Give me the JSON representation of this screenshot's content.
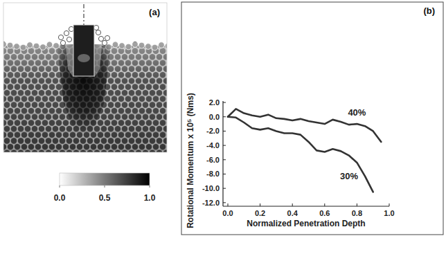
{
  "chart_data": [
    {
      "type": "image",
      "title": "(a)",
      "colorbar_range": [
        0,
        1
      ],
      "colorbar_ticks": [
        {
          "value": 0,
          "label": "0.0"
        },
        {
          "value": 0.5,
          "label": "0.5"
        },
        {
          "value": 1,
          "label": "1.0"
        }
      ]
    },
    {
      "type": "line",
      "title": "(b)",
      "x_label": "Normalized Penetration Depth",
      "y_label": "Rotational Momentum x 10⁵ (Nms)",
      "x": [
        0,
        0.05,
        0.1,
        0.15,
        0.2,
        0.25,
        0.3,
        0.35,
        0.4,
        0.45,
        0.5,
        0.55,
        0.6,
        0.65,
        0.7,
        0.75,
        0.8,
        0.85,
        0.9,
        0.95
      ],
      "series": [
        {
          "name": "40%",
          "color": "#333333",
          "values": [
            0,
            1.1,
            0.5,
            0.2,
            0.0,
            0.3,
            -0.2,
            -0.3,
            -0.5,
            -0.3,
            -0.6,
            -0.8,
            -1.0,
            -0.4,
            -0.7,
            -1.1,
            -1.0,
            -1.3,
            -2.0,
            -3.5
          ]
        },
        {
          "name": "30%",
          "color": "#333333",
          "values": [
            0,
            -0.1,
            -0.8,
            -1.6,
            -1.8,
            -1.6,
            -2.0,
            -2.3,
            -2.3,
            -2.5,
            -3.5,
            -4.7,
            -4.9,
            -4.5,
            -4.8,
            -5.4,
            -6.4,
            -8.3,
            -10.5,
            null
          ]
        }
      ],
      "xlim": [
        -0.03,
        1.0
      ],
      "ylim": [
        -12.5,
        2.2
      ],
      "xticks": [
        {
          "value": 0,
          "label": "0.0"
        },
        {
          "value": 0.2,
          "label": "0.2"
        },
        {
          "value": 0.4,
          "label": "0.4"
        },
        {
          "value": 0.6,
          "label": "0.6"
        },
        {
          "value": 0.8,
          "label": "0.8"
        },
        {
          "value": 1,
          "label": "1.0"
        }
      ],
      "yticks": [
        {
          "value": -12,
          "label": "-12.0"
        },
        {
          "value": -10,
          "label": "-10.0"
        },
        {
          "value": -8,
          "label": "-8.0"
        },
        {
          "value": -6,
          "label": "-6.0"
        },
        {
          "value": -4,
          "label": "-4.0"
        },
        {
          "value": -2,
          "label": "-2.0"
        },
        {
          "value": 0,
          "label": "0.0"
        },
        {
          "value": 2,
          "label": "2.0"
        }
      ]
    }
  ]
}
